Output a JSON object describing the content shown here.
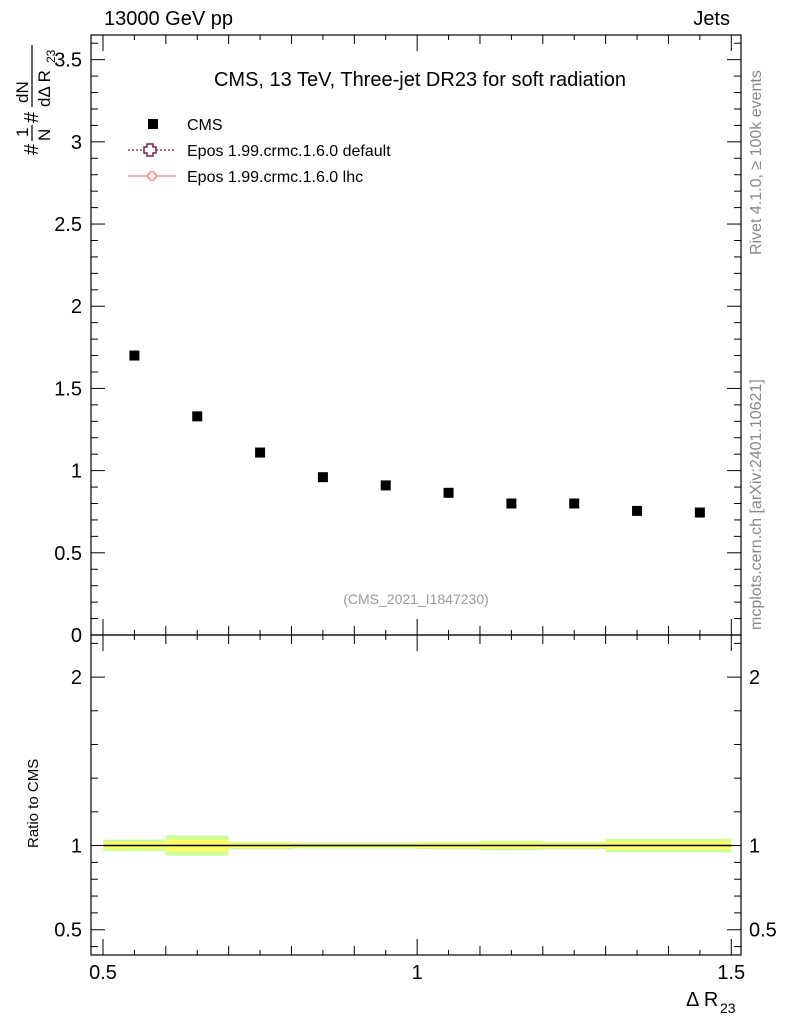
{
  "header": {
    "left": "13000 GeV pp",
    "right": "Jets"
  },
  "side_labels": {
    "rivet": "Rivet 4.1.0, ≥ 100k events",
    "mcplots": "mcplots.cern.ch [arXiv:2401.10621]"
  },
  "chart_data": {
    "type": "scatter",
    "title": "CMS, 13 TeV, Three-jet DR23 for soft radiation",
    "analysis_tag": "(CMS_2021_I1847230)",
    "ylabel_main": "#1/N #dN/dΔ R23",
    "ylabel_ratio": "Ratio to CMS",
    "xlabel": "Δ R23",
    "xlim": [
      0.5,
      1.5
    ],
    "ylim_main": [
      0,
      3.65
    ],
    "ylim_ratio": [
      0.35,
      2.25
    ],
    "x_ticks": [
      "0.5",
      "1",
      "1.5"
    ],
    "y_ticks_main": [
      "0",
      "0.5",
      "1",
      "1.5",
      "2",
      "2.5",
      "3",
      "3.5"
    ],
    "y_ticks_ratio": [
      "0.5",
      "1",
      "2"
    ],
    "legend": [
      {
        "label": "CMS",
        "marker": "square",
        "color": "#000000"
      },
      {
        "label": "Epos 1.99.crmc.1.6.0 default",
        "marker": "cross-open",
        "color": "#7b1f47",
        "linestyle": "dotted"
      },
      {
        "label": "Epos 1.99.crmc.1.6.0 lhc",
        "marker": "cross-small",
        "color": "#f08080",
        "linestyle": "solid"
      }
    ],
    "series": [
      {
        "name": "CMS",
        "x": [
          0.55,
          0.65,
          0.75,
          0.85,
          0.95,
          1.05,
          1.15,
          1.25,
          1.35,
          1.45
        ],
        "y": [
          1.7,
          1.33,
          1.11,
          0.96,
          0.91,
          0.865,
          0.8,
          0.8,
          0.755,
          0.745
        ]
      }
    ],
    "ratio_band": {
      "x_edges": [
        0.5,
        0.6,
        0.7,
        0.8,
        0.9,
        1.0,
        1.1,
        1.2,
        1.3,
        1.4,
        1.5
      ],
      "inner": [
        0.02,
        0.035,
        0.015,
        0.012,
        0.012,
        0.015,
        0.018,
        0.015,
        0.025,
        0.025
      ],
      "outer": [
        0.035,
        0.06,
        0.022,
        0.018,
        0.018,
        0.022,
        0.028,
        0.022,
        0.04,
        0.04
      ]
    },
    "colors": {
      "band_inner": "#ffff66",
      "band_outer": "#ccff99"
    }
  }
}
